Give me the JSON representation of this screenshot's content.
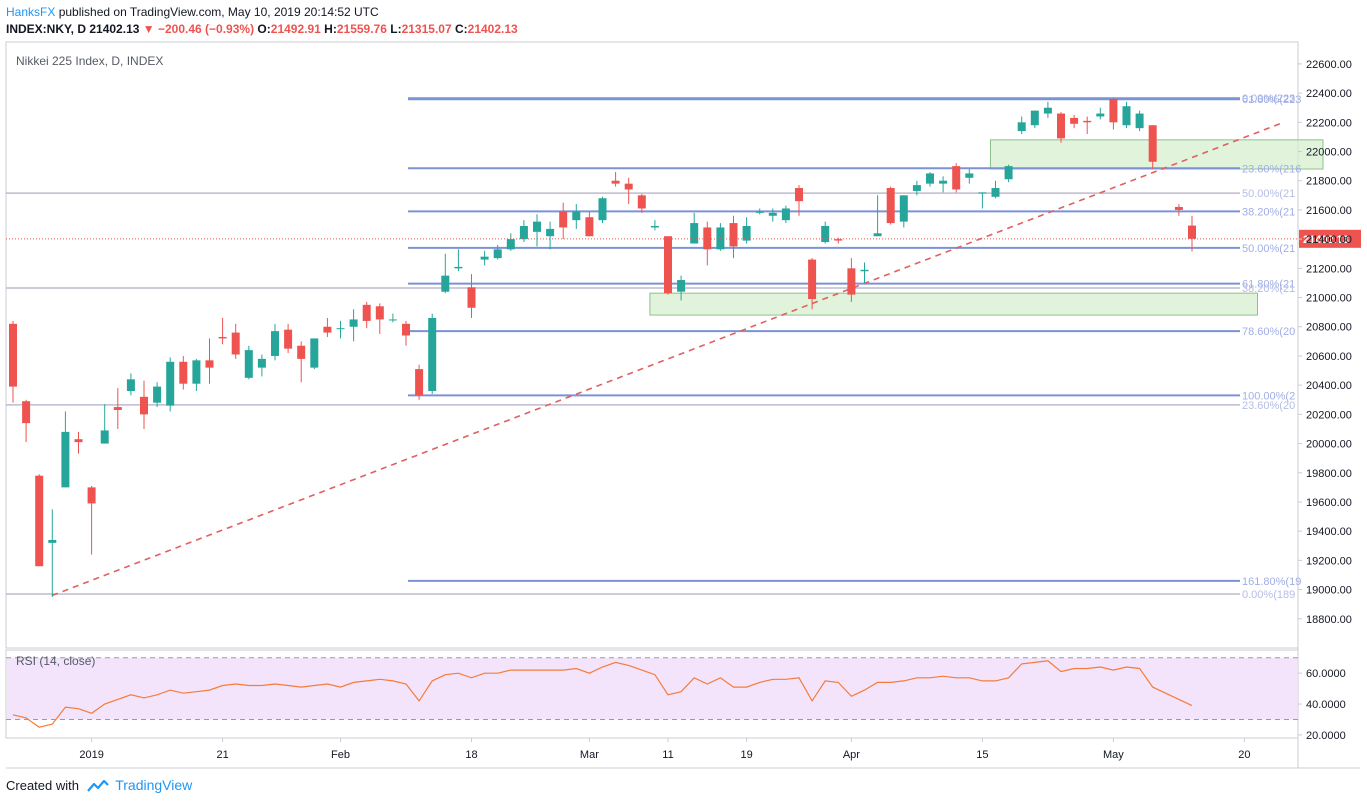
{
  "header": {
    "author": "HanksFX",
    "published_text": "published on TradingView.com, May 10, 2019 20:14:52 UTC",
    "symbol": "INDEX:NKY, D",
    "last": "21402.13",
    "change": "−200.46 (−0.93%)",
    "o_label": "O:",
    "o_value": "21492.91",
    "h_label": "H:",
    "h_value": "21559.76",
    "l_label": "L:",
    "l_value": "21315.07",
    "c_label": "C:",
    "c_value": "21402.13"
  },
  "footer": {
    "created_with": "Created with",
    "brand": "TradingView"
  },
  "colors": {
    "up": "#26a69a",
    "down": "#ef5350",
    "fib_line": "#7b93d6",
    "fib_text": "#a0aee6",
    "trendline": "#e06060",
    "zone_fill": "#d7efcf",
    "zone_border": "#8bc48a",
    "rsi_line": "#f57c3a",
    "rsi_band": "#f3e4fb",
    "price_label_bg": "#ef5350"
  },
  "chart_data": [
    {
      "type": "candlestick",
      "title": "Nikkei 225 Index, D, INDEX",
      "ylim": [
        18600,
        22750
      ],
      "y_ticks": [
        18800,
        19000,
        19200,
        19400,
        19600,
        19800,
        20000,
        20200,
        20400,
        20600,
        20800,
        21000,
        21200,
        21400,
        21600,
        21800,
        22000,
        22200,
        22400,
        22600
      ],
      "x_ticks": [
        {
          "index": 6,
          "label": "2019"
        },
        {
          "index": 16,
          "label": "21"
        },
        {
          "index": 25,
          "label": "Feb"
        },
        {
          "index": 35,
          "label": "18"
        },
        {
          "index": 44,
          "label": "Mar"
        },
        {
          "index": 50,
          "label": "11"
        },
        {
          "index": 56,
          "label": "19"
        },
        {
          "index": 64,
          "label": "Apr"
        },
        {
          "index": 74,
          "label": "15"
        },
        {
          "index": 84,
          "label": "May"
        },
        {
          "index": 93,
          "label": "20"
        }
      ],
      "candles": [
        [
          20820,
          20840,
          20280,
          20390
        ],
        [
          20290,
          20300,
          20010,
          20140
        ],
        [
          19780,
          19790,
          19160,
          19160
        ],
        [
          19320,
          19550,
          18950,
          19340
        ],
        [
          19700,
          20220,
          19700,
          20080
        ],
        [
          20030,
          20080,
          19930,
          20010
        ],
        [
          19700,
          19710,
          19240,
          19590
        ],
        [
          20000,
          20270,
          20000,
          20090
        ],
        [
          20250,
          20380,
          20100,
          20230
        ],
        [
          20360,
          20480,
          20330,
          20440
        ],
        [
          20320,
          20430,
          20100,
          20200
        ],
        [
          20280,
          20420,
          20250,
          20390
        ],
        [
          20260,
          20590,
          20220,
          20560
        ],
        [
          20560,
          20600,
          20370,
          20410
        ],
        [
          20410,
          20580,
          20360,
          20570
        ],
        [
          20570,
          20720,
          20410,
          20520
        ],
        [
          20730,
          20860,
          20680,
          20720
        ],
        [
          20760,
          20820,
          20580,
          20610
        ],
        [
          20450,
          20670,
          20440,
          20640
        ],
        [
          20520,
          20610,
          20460,
          20580
        ],
        [
          20600,
          20820,
          20570,
          20770
        ],
        [
          20780,
          20820,
          20620,
          20650
        ],
        [
          20670,
          20700,
          20420,
          20580
        ],
        [
          20520,
          20710,
          20510,
          20720
        ],
        [
          20800,
          20860,
          20730,
          20760
        ],
        [
          20790,
          20840,
          20720,
          20790
        ],
        [
          20800,
          20920,
          20700,
          20850
        ],
        [
          20950,
          20970,
          20790,
          20840
        ],
        [
          20940,
          20960,
          20750,
          20850
        ],
        [
          20850,
          20890,
          20830,
          20850
        ],
        [
          20820,
          20840,
          20670,
          20740
        ],
        [
          20510,
          20540,
          20300,
          20330
        ],
        [
          20360,
          20890,
          20340,
          20860
        ],
        [
          21040,
          21300,
          21030,
          21150
        ],
        [
          21200,
          21330,
          21180,
          21210
        ],
        [
          21070,
          21160,
          20860,
          20930
        ],
        [
          21260,
          21320,
          21220,
          21280
        ],
        [
          21270,
          21360,
          21260,
          21330
        ],
        [
          21330,
          21440,
          21320,
          21400
        ],
        [
          21400,
          21530,
          21380,
          21490
        ],
        [
          21450,
          21570,
          21350,
          21520
        ],
        [
          21420,
          21520,
          21330,
          21470
        ],
        [
          21590,
          21650,
          21400,
          21480
        ],
        [
          21530,
          21640,
          21470,
          21590
        ],
        [
          21550,
          21590,
          21420,
          21420
        ],
        [
          21530,
          21690,
          21510,
          21680
        ],
        [
          21800,
          21860,
          21760,
          21780
        ],
        [
          21780,
          21820,
          21640,
          21740
        ],
        [
          21700,
          21710,
          21580,
          21610
        ],
        [
          21480,
          21530,
          21460,
          21490
        ],
        [
          21420,
          21420,
          21020,
          21030
        ],
        [
          21040,
          21150,
          20980,
          21120
        ],
        [
          21370,
          21580,
          21370,
          21510
        ],
        [
          21480,
          21520,
          21220,
          21330
        ],
        [
          21330,
          21510,
          21320,
          21480
        ],
        [
          21510,
          21560,
          21270,
          21350
        ],
        [
          21390,
          21550,
          21370,
          21490
        ],
        [
          21580,
          21610,
          21570,
          21590
        ],
        [
          21560,
          21610,
          21520,
          21580
        ],
        [
          21530,
          21630,
          21510,
          21610
        ],
        [
          21750,
          21770,
          21560,
          21660
        ],
        [
          21260,
          21270,
          20920,
          20990
        ],
        [
          21380,
          21520,
          21370,
          21490
        ],
        [
          21400,
          21410,
          21370,
          21390
        ],
        [
          21200,
          21270,
          20970,
          21020
        ],
        [
          21180,
          21240,
          21100,
          21190
        ],
        [
          21420,
          21700,
          21420,
          21440
        ],
        [
          21750,
          21760,
          21500,
          21510
        ],
        [
          21520,
          21700,
          21480,
          21700
        ],
        [
          21730,
          21800,
          21700,
          21770
        ],
        [
          21780,
          21860,
          21760,
          21850
        ],
        [
          21780,
          21830,
          21720,
          21800
        ],
        [
          21900,
          21920,
          21720,
          21740
        ],
        [
          21820,
          21880,
          21780,
          21850
        ],
        [
          21720,
          21720,
          21610,
          21720
        ],
        [
          21690,
          21800,
          21680,
          21750
        ],
        [
          21810,
          21910,
          21790,
          21900
        ],
        [
          22140,
          22240,
          22120,
          22200
        ],
        [
          22180,
          22280,
          22160,
          22280
        ],
        [
          22260,
          22340,
          22230,
          22300
        ],
        [
          22260,
          22270,
          22060,
          22090
        ],
        [
          22230,
          22250,
          22160,
          22190
        ],
        [
          22210,
          22240,
          22120,
          22200
        ],
        [
          22240,
          22300,
          22220,
          22260
        ],
        [
          22360,
          22370,
          22150,
          22200
        ],
        [
          22180,
          22340,
          22160,
          22310
        ],
        [
          22160,
          22280,
          22140,
          22260
        ],
        [
          22180,
          22180,
          21880,
          21930
        ],
        [
          21620,
          21640,
          21560,
          21600
        ],
        [
          21492.91,
          21559.76,
          21315.07,
          21402.13
        ]
      ],
      "skip_before": [
        88
      ],
      "fib_lines": [
        {
          "price": 22365,
          "label": "0.00%(223",
          "style": "solid"
        },
        {
          "price": 22358,
          "label": "61.80%(223",
          "style": "solid"
        },
        {
          "price": 21885,
          "label": "23.60%(216",
          "style": "solid"
        },
        {
          "price": 21715,
          "label": "50.00%(21",
          "style": "faint"
        },
        {
          "price": 21590,
          "label": "38.20%(21",
          "style": "solid"
        },
        {
          "price": 21340,
          "label": "50.00%(21",
          "style": "solid"
        },
        {
          "price": 21095,
          "label": "61.80%(21",
          "style": "solid"
        },
        {
          "price": 21065,
          "label": "38.20%(21",
          "style": "faint"
        },
        {
          "price": 20770,
          "label": "78.60%(20",
          "style": "solid"
        },
        {
          "price": 20330,
          "label": "100.00%(2",
          "style": "solid"
        },
        {
          "price": 20265,
          "label": "23.60%(20",
          "style": "faint"
        },
        {
          "price": 19060,
          "label": "161.80%(19",
          "style": "solid"
        },
        {
          "price": 18970,
          "label": "0.00%(189",
          "style": "faint"
        }
      ],
      "trendline": {
        "from": [
          3,
          18960
        ],
        "to": [
          96,
          22200
        ]
      },
      "zones": [
        {
          "from_index": 75,
          "to_index": 99,
          "top": 22080,
          "bottom": 21880
        },
        {
          "from_index": 49,
          "to_index": 94,
          "top": 21030,
          "bottom": 20880
        }
      ],
      "current_price": {
        "value": 21402.13,
        "label": "21402.13"
      }
    },
    {
      "type": "line",
      "title": "RSI (14, close)",
      "ylim": [
        18,
        75
      ],
      "y_ticks": [
        20.0,
        40.0,
        60.0
      ],
      "y_tick_labels": [
        "20.0000",
        "40.0000",
        "60.0000"
      ],
      "bands": [
        30,
        70
      ],
      "values": [
        33,
        31,
        25,
        27,
        38,
        37,
        34,
        40,
        43,
        46,
        44,
        46,
        49,
        47,
        48,
        49,
        52,
        53,
        52,
        52,
        53,
        52,
        51,
        52,
        53,
        51,
        54,
        55,
        56,
        55,
        53,
        42,
        55,
        59,
        60,
        57,
        60,
        60,
        62,
        62,
        62,
        62,
        62,
        63,
        60,
        64,
        67,
        65,
        62,
        59,
        46,
        48,
        57,
        53,
        57,
        51,
        51,
        54,
        56,
        56,
        57,
        42,
        55,
        54,
        45,
        49,
        54,
        54,
        55,
        57,
        57,
        58,
        57,
        57,
        55,
        55,
        57,
        66,
        67,
        68,
        61,
        63,
        63,
        64,
        62,
        64,
        63,
        51,
        43,
        39
      ]
    }
  ]
}
